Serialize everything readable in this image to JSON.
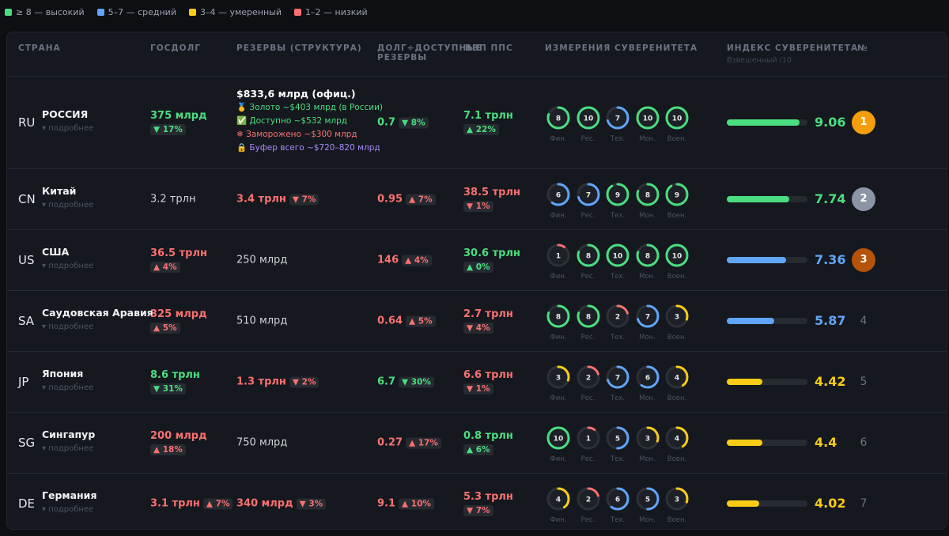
{
  "legend": [
    {
      "label": "≥ 8 — высокий",
      "color": "#4ade80",
      "min": 8
    },
    {
      "label": "5–7 — средний",
      "color": "#60a5fa",
      "min": 5
    },
    {
      "label": "3–4 — умеренный",
      "color": "#facc15",
      "min": 3
    },
    {
      "label": "1–2 — низкий",
      "color": "#f87171",
      "min": 1
    }
  ],
  "table": {
    "headers": [
      "СТРАНА",
      "ГОСДОЛГ",
      "РЕЗЕРВЫ (СТРУКТУРА)",
      "ДОЛГ÷ДОСТУПНЫЕ РЕЗЕРВЫ",
      "ВВП ППС",
      "ИЗМЕРЕНИЯ СУВЕРЕНИТЕТА",
      "ИНДЕКС СУВЕРЕНИТЕТА",
      "№"
    ],
    "index_subheader": "Взвешенный /10",
    "scale_max": 10,
    "details_label": "▾ подробнее",
    "dimension_labels": [
      "Фин.",
      "Рес.",
      "Тех.",
      "Мон.",
      "Воен."
    ],
    "rows": [
      {
        "code": "RU",
        "name": "РОССИЯ",
        "debt": {
          "value": "375 млрд",
          "change": "▼ 17%",
          "color": "#4ade80"
        },
        "reserves": {
          "value": "$833,6 млрд (офиц.)",
          "color": "#ffffff",
          "lines": [
            {
              "text": "🥇 Золото ~$403 млрд (в России)",
              "color": "#4ade80"
            },
            {
              "text": "✅ Доступно ~$532 млрд",
              "color": "#4ade80"
            },
            {
              "text": "❄ Заморожено ~$300 млрд",
              "color": "#f87171"
            },
            {
              "text": "🔒 Буфер всего ~$720–820 млрд",
              "color": "#a78bfa"
            }
          ]
        },
        "ratio": {
          "value": "0.7",
          "change": "▼ 8%",
          "color": "#4ade80"
        },
        "gdp": {
          "value": "7.1 трлн",
          "change": "▲ 22%",
          "color": "#4ade80"
        },
        "dims": [
          8,
          10,
          7,
          10,
          10
        ],
        "index": 9.06,
        "index_color": "#4ade80",
        "rank": 1,
        "rank_color": "#f59e0b"
      },
      {
        "code": "CN",
        "name": "Китай",
        "debt": {
          "value": "3.2 трлн",
          "color": "#d1d5db"
        },
        "reserves": {
          "value": "3.4 трлн",
          "change": "▼ 7%",
          "color": "#f87171"
        },
        "ratio": {
          "value": "0.95",
          "change": "▲ 7%",
          "color": "#f87171"
        },
        "gdp": {
          "value": "38.5 трлн",
          "change": "▼ 1%",
          "color": "#f87171"
        },
        "dims": [
          6,
          7,
          9,
          8,
          9
        ],
        "index": 7.74,
        "index_color": "#4ade80",
        "rank": 2,
        "rank_color": "#8b95a5"
      },
      {
        "code": "US",
        "name": "США",
        "debt": {
          "value": "36.5 трлн",
          "change": "▲ 4%",
          "color": "#f87171"
        },
        "reserves": {
          "value": "250 млрд",
          "color": "#d1d5db"
        },
        "ratio": {
          "value": "146",
          "change": "▲ 4%",
          "color": "#f87171"
        },
        "gdp": {
          "value": "30.6 трлн",
          "change": "▲ 0%",
          "color": "#4ade80"
        },
        "dims": [
          1,
          8,
          10,
          8,
          10
        ],
        "index": 7.36,
        "index_color": "#60a5fa",
        "rank": 3,
        "rank_color": "#b45309"
      },
      {
        "code": "SA",
        "name": "Саудовская Аравия",
        "debt": {
          "value": "325 млрд",
          "change": "▲ 5%",
          "color": "#f87171"
        },
        "reserves": {
          "value": "510 млрд",
          "color": "#d1d5db"
        },
        "ratio": {
          "value": "0.64",
          "change": "▲ 5%",
          "color": "#f87171"
        },
        "gdp": {
          "value": "2.7 трлн",
          "change": "▼ 4%",
          "color": "#f87171"
        },
        "dims": [
          8,
          8,
          2,
          7,
          3
        ],
        "index": 5.87,
        "index_color": "#60a5fa",
        "rank": 4
      },
      {
        "code": "JP",
        "name": "Япония",
        "debt": {
          "value": "8.6 трлн",
          "change": "▼ 31%",
          "color": "#4ade80"
        },
        "reserves": {
          "value": "1.3 трлн",
          "change": "▼ 2%",
          "color": "#f87171"
        },
        "ratio": {
          "value": "6.7",
          "change": "▼ 30%",
          "color": "#4ade80"
        },
        "gdp": {
          "value": "6.6 трлн",
          "change": "▼ 1%",
          "color": "#f87171"
        },
        "dims": [
          3,
          2,
          7,
          6,
          4
        ],
        "index": 4.42,
        "index_color": "#facc15",
        "rank": 5
      },
      {
        "code": "SG",
        "name": "Сингапур",
        "debt": {
          "value": "200 млрд",
          "change": "▲ 18%",
          "color": "#f87171"
        },
        "reserves": {
          "value": "750 млрд",
          "color": "#d1d5db"
        },
        "ratio": {
          "value": "0.27",
          "change": "▲ 17%",
          "color": "#f87171"
        },
        "gdp": {
          "value": "0.8 трлн",
          "change": "▲ 6%",
          "color": "#4ade80"
        },
        "dims": [
          10,
          1,
          5,
          3,
          4
        ],
        "index": 4.4,
        "index_color": "#facc15",
        "rank": 6
      },
      {
        "code": "DE",
        "name": "Германия",
        "debt": {
          "value": "3.1 трлн",
          "change": "▲ 7%",
          "color": "#f87171"
        },
        "reserves": {
          "value": "340 млрд",
          "change": "▼ 3%",
          "color": "#f87171"
        },
        "ratio": {
          "value": "9.1",
          "change": "▲ 10%",
          "color": "#f87171"
        },
        "gdp": {
          "value": "5.3 трлн",
          "change": "▼ 7%",
          "color": "#f87171"
        },
        "dims": [
          4,
          2,
          6,
          5,
          3
        ],
        "index": 4.02,
        "index_color": "#facc15",
        "rank": 7
      }
    ]
  }
}
